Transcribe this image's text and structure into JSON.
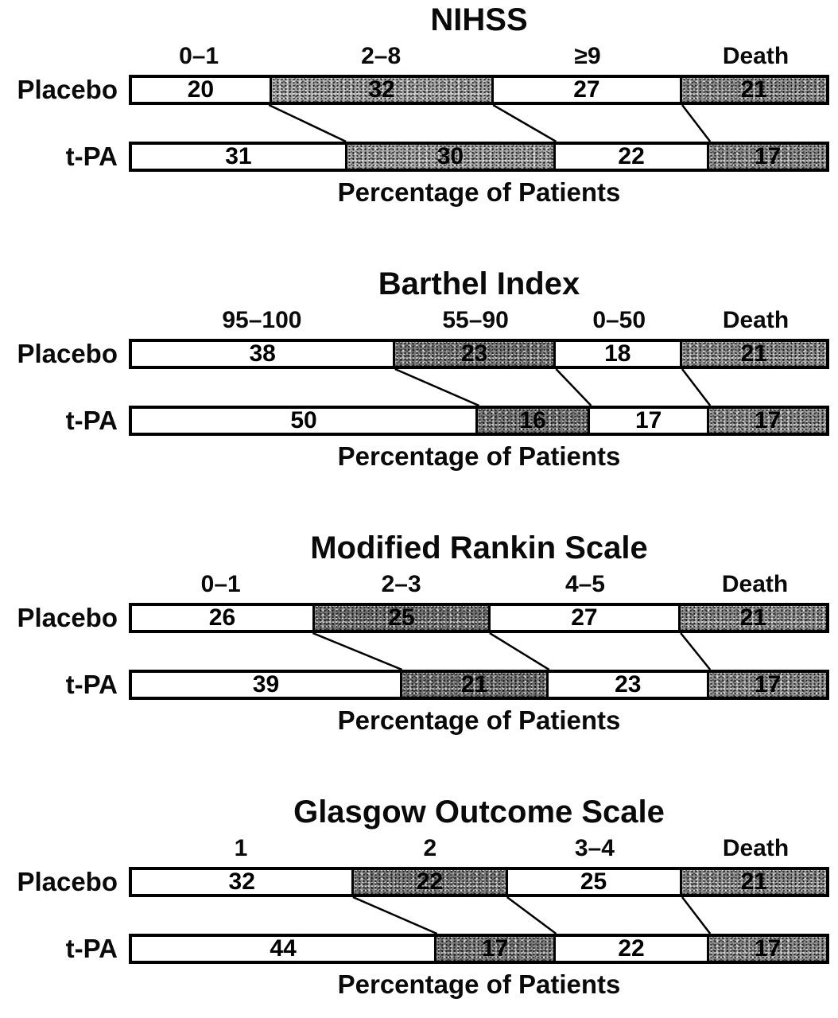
{
  "figure": {
    "description": "Four stacked horizontal percentage bar charts comparing Placebo vs t-PA outcomes",
    "row_labels": [
      "Placebo",
      "t-PA"
    ],
    "axis_label": "Percentage of Patients"
  },
  "colors": {
    "background": "#ffffff",
    "ink": "#000000",
    "white_segment": "#ffffff",
    "shaded_segment_light": "#a8a8a8",
    "shaded_segment_dark": "#7a7a7a",
    "death_segment": "#8f8f8f"
  },
  "chart_data": [
    {
      "type": "bar",
      "subtype": "stacked-horizontal-percent",
      "title": "NIHSS",
      "xlabel": "Percentage of Patients",
      "xlim": [
        0,
        100
      ],
      "categories": [
        "0–1",
        "2–8",
        "≥9",
        "Death"
      ],
      "series": [
        {
          "name": "Placebo",
          "values": [
            20,
            32,
            27,
            21
          ]
        },
        {
          "name": "t-PA",
          "values": [
            31,
            30,
            22,
            17
          ]
        }
      ],
      "segment_fills": [
        "#ffffff",
        "#a8a8a8",
        "#ffffff",
        "#8f8f8f"
      ],
      "connectors": true
    },
    {
      "type": "bar",
      "subtype": "stacked-horizontal-percent",
      "title": "Barthel Index",
      "xlabel": "Percentage of Patients",
      "xlim": [
        0,
        100
      ],
      "categories": [
        "95–100",
        "55–90",
        "0–50",
        "Death"
      ],
      "series": [
        {
          "name": "Placebo",
          "values": [
            38,
            23,
            18,
            21
          ]
        },
        {
          "name": "t-PA",
          "values": [
            50,
            16,
            17,
            17
          ]
        }
      ],
      "segment_fills": [
        "#ffffff",
        "#7a7a7a",
        "#ffffff",
        "#8f8f8f"
      ],
      "connectors": true
    },
    {
      "type": "bar",
      "subtype": "stacked-horizontal-percent",
      "title": "Modified Rankin Scale",
      "xlabel": "Percentage of Patients",
      "xlim": [
        0,
        100
      ],
      "categories": [
        "0–1",
        "2–3",
        "4–5",
        "Death"
      ],
      "series": [
        {
          "name": "Placebo",
          "values": [
            26,
            25,
            27,
            21
          ]
        },
        {
          "name": "t-PA",
          "values": [
            39,
            21,
            23,
            17
          ]
        }
      ],
      "segment_fills": [
        "#ffffff",
        "#747474",
        "#ffffff",
        "#8f8f8f"
      ],
      "connectors": true
    },
    {
      "type": "bar",
      "subtype": "stacked-horizontal-percent",
      "title": "Glasgow Outcome Scale",
      "xlabel": "Percentage of Patients",
      "xlim": [
        0,
        100
      ],
      "categories": [
        "1",
        "2",
        "3–4",
        "Death"
      ],
      "series": [
        {
          "name": "Placebo",
          "values": [
            32,
            22,
            25,
            21
          ]
        },
        {
          "name": "t-PA",
          "values": [
            44,
            17,
            22,
            17
          ]
        }
      ],
      "segment_fills": [
        "#ffffff",
        "#7e7e7e",
        "#ffffff",
        "#8f8f8f"
      ],
      "connectors": true
    }
  ]
}
